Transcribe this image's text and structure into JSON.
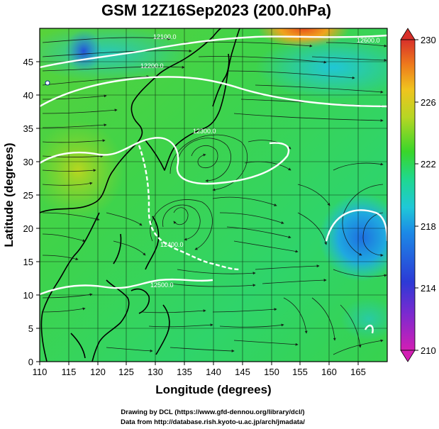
{
  "title": "GSM 12Z16Sep2023 (200.0hPa)",
  "x_axis": {
    "label": "Longitude (degrees)",
    "ticks": [
      "110",
      "115",
      "120",
      "125",
      "130",
      "135",
      "140",
      "145",
      "150",
      "155",
      "160",
      "165"
    ]
  },
  "y_axis": {
    "label": "Latitude  (degrees)",
    "ticks": [
      "0",
      "5",
      "10",
      "15",
      "20",
      "25",
      "30",
      "35",
      "40",
      "45"
    ]
  },
  "colorbar": {
    "ticks": [
      "210",
      "214",
      "218",
      "222",
      "226",
      "230"
    ],
    "colors": [
      "#d21fb4",
      "#3c3cd6",
      "#1c7ee6",
      "#1fc3d8",
      "#1fd890",
      "#39d62a",
      "#9ad625",
      "#e6d61e",
      "#f0a41e",
      "#e8591c",
      "#d8302a"
    ]
  },
  "contour_labels": [
    "12100.0",
    "12200.0",
    "12300.0",
    "12400.0",
    "12500.0",
    "12600.0"
  ],
  "credits": {
    "line1": "Drawing by DCL (https://www.gfd-dennou.org/library/dcl/)",
    "line2": "Data from http://database.rish.kyoto-u.ac.jp/arch/jmadata/"
  },
  "chart_data": {
    "type": "heatmap",
    "title": "GSM 12Z16Sep2023 (200.0hPa)",
    "xlabel": "Longitude (degrees)",
    "ylabel": "Latitude  (degrees)",
    "xlim": [
      110,
      170
    ],
    "ylim": [
      0,
      50
    ],
    "colorbar_range": [
      210,
      230
    ],
    "colorbar_ticks": [
      210,
      214,
      218,
      222,
      226,
      230
    ],
    "overlays": [
      "streamlines",
      "geopotential height contours",
      "coastlines",
      "grid"
    ],
    "grid": true
  }
}
